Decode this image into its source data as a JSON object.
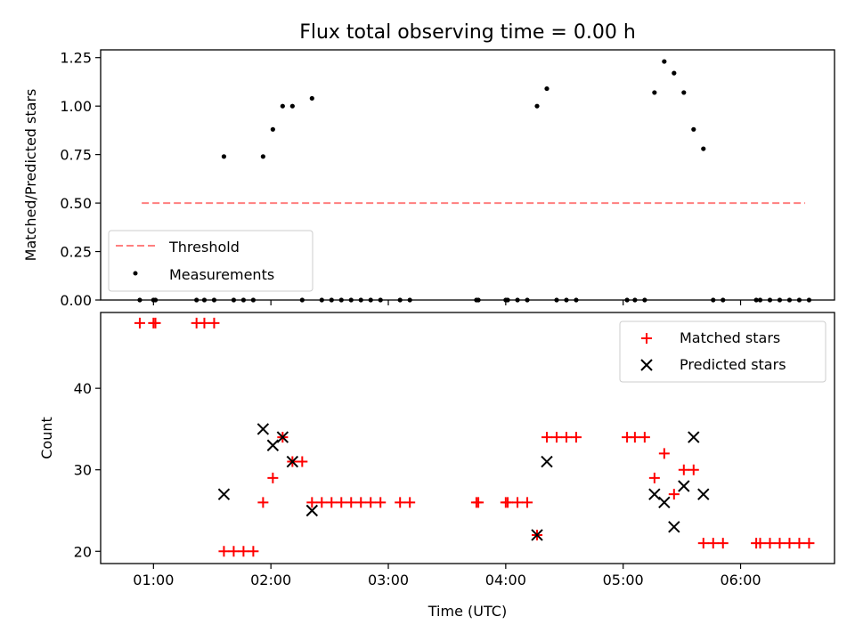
{
  "chart_data": [
    {
      "type": "scatter",
      "title": "Flux total observing time = 0.00 h",
      "xlabel": "",
      "ylabel": "Matched/Predicted stars",
      "xlim": [
        "00:33",
        "06:48"
      ],
      "ylim": [
        0,
        1.29
      ],
      "yticks": [
        "0.00",
        "0.25",
        "0.50",
        "0.75",
        "1.00",
        "1.25"
      ],
      "xticks": [
        "01:00",
        "02:00",
        "03:00",
        "04:00",
        "05:00",
        "06:00"
      ],
      "show_xtick_labels": false,
      "legend": {
        "position": "lower-left",
        "entries": [
          "Threshold",
          "Measurements"
        ]
      },
      "series": [
        {
          "name": "Threshold",
          "kind": "line",
          "style": "dashed",
          "color": "#ff7f7f",
          "x": [
            "00:54",
            "06:33"
          ],
          "y": [
            0.5,
            0.5
          ]
        },
        {
          "name": "Measurements",
          "kind": "points",
          "color": "#000000",
          "points": [
            [
              "00:53",
              0
            ],
            [
              "01:00",
              0
            ],
            [
              "01:01",
              0
            ],
            [
              "01:22",
              0
            ],
            [
              "01:26",
              0
            ],
            [
              "01:31",
              0
            ],
            [
              "01:36",
              0.74
            ],
            [
              "01:41",
              0
            ],
            [
              "01:46",
              0
            ],
            [
              "01:51",
              0
            ],
            [
              "01:56",
              0.74
            ],
            [
              "02:01",
              0.88
            ],
            [
              "02:06",
              1.0
            ],
            [
              "02:11",
              1.0
            ],
            [
              "02:16",
              0
            ],
            [
              "02:21",
              1.04
            ],
            [
              "02:26",
              0
            ],
            [
              "02:31",
              0
            ],
            [
              "02:36",
              0
            ],
            [
              "02:41",
              0
            ],
            [
              "02:46",
              0
            ],
            [
              "02:51",
              0
            ],
            [
              "02:56",
              0
            ],
            [
              "03:06",
              0
            ],
            [
              "03:11",
              0
            ],
            [
              "03:45",
              0
            ],
            [
              "03:46",
              0
            ],
            [
              "04:00",
              0
            ],
            [
              "04:01",
              0
            ],
            [
              "04:06",
              0
            ],
            [
              "04:11",
              0
            ],
            [
              "04:16",
              1.0
            ],
            [
              "04:21",
              1.09
            ],
            [
              "04:26",
              0
            ],
            [
              "04:31",
              0
            ],
            [
              "04:36",
              0
            ],
            [
              "05:02",
              0
            ],
            [
              "05:06",
              0
            ],
            [
              "05:11",
              0
            ],
            [
              "05:16",
              1.07
            ],
            [
              "05:21",
              1.23
            ],
            [
              "05:26",
              1.17
            ],
            [
              "05:31",
              1.07
            ],
            [
              "05:36",
              0.88
            ],
            [
              "05:41",
              0.78
            ],
            [
              "05:46",
              0
            ],
            [
              "05:51",
              0
            ],
            [
              "06:08",
              0
            ],
            [
              "06:10",
              0
            ],
            [
              "06:15",
              0
            ],
            [
              "06:20",
              0
            ],
            [
              "06:25",
              0
            ],
            [
              "06:30",
              0
            ],
            [
              "06:35",
              0
            ]
          ]
        }
      ]
    },
    {
      "type": "scatter",
      "title": "",
      "xlabel": "Time (UTC)",
      "ylabel": "Count",
      "xlim": [
        "00:33",
        "06:48"
      ],
      "ylim": [
        18.5,
        49.3
      ],
      "yticks": [
        "20",
        "30",
        "40"
      ],
      "xticks": [
        "01:00",
        "02:00",
        "03:00",
        "04:00",
        "05:00",
        "06:00"
      ],
      "show_xtick_labels": true,
      "legend": {
        "position": "top-right",
        "entries": [
          "Matched stars",
          "Predicted stars"
        ]
      },
      "series": [
        {
          "name": "Matched stars",
          "kind": "plus",
          "color": "#ff0000",
          "points": [
            [
              "00:53",
              48
            ],
            [
              "01:00",
              48
            ],
            [
              "01:01",
              48
            ],
            [
              "01:22",
              48
            ],
            [
              "01:26",
              48
            ],
            [
              "01:31",
              48
            ],
            [
              "01:36",
              20
            ],
            [
              "01:41",
              20
            ],
            [
              "01:46",
              20
            ],
            [
              "01:51",
              20
            ],
            [
              "01:56",
              26
            ],
            [
              "02:01",
              29
            ],
            [
              "02:06",
              34
            ],
            [
              "02:11",
              31
            ],
            [
              "02:16",
              31
            ],
            [
              "02:21",
              26
            ],
            [
              "02:26",
              26
            ],
            [
              "02:31",
              26
            ],
            [
              "02:36",
              26
            ],
            [
              "02:41",
              26
            ],
            [
              "02:46",
              26
            ],
            [
              "02:51",
              26
            ],
            [
              "02:56",
              26
            ],
            [
              "03:06",
              26
            ],
            [
              "03:11",
              26
            ],
            [
              "03:45",
              26
            ],
            [
              "03:46",
              26
            ],
            [
              "04:00",
              26
            ],
            [
              "04:01",
              26
            ],
            [
              "04:06",
              26
            ],
            [
              "04:11",
              26
            ],
            [
              "04:16",
              22
            ],
            [
              "04:21",
              34
            ],
            [
              "04:26",
              34
            ],
            [
              "04:31",
              34
            ],
            [
              "04:36",
              34
            ],
            [
              "05:02",
              34
            ],
            [
              "05:06",
              34
            ],
            [
              "05:11",
              34
            ],
            [
              "05:16",
              29
            ],
            [
              "05:21",
              32
            ],
            [
              "05:26",
              27
            ],
            [
              "05:31",
              30
            ],
            [
              "05:36",
              30
            ],
            [
              "05:41",
              21
            ],
            [
              "05:46",
              21
            ],
            [
              "05:51",
              21
            ],
            [
              "06:08",
              21
            ],
            [
              "06:10",
              21
            ],
            [
              "06:15",
              21
            ],
            [
              "06:20",
              21
            ],
            [
              "06:25",
              21
            ],
            [
              "06:30",
              21
            ],
            [
              "06:35",
              21
            ]
          ]
        },
        {
          "name": "Predicted stars",
          "kind": "x",
          "color": "#000000",
          "points": [
            [
              "01:36",
              27
            ],
            [
              "01:56",
              35
            ],
            [
              "02:01",
              33
            ],
            [
              "02:06",
              34
            ],
            [
              "02:11",
              31
            ],
            [
              "02:21",
              25
            ],
            [
              "04:16",
              22
            ],
            [
              "04:21",
              31
            ],
            [
              "05:16",
              27
            ],
            [
              "05:21",
              26
            ],
            [
              "05:26",
              23
            ],
            [
              "05:31",
              28
            ],
            [
              "05:36",
              34
            ],
            [
              "05:41",
              27
            ]
          ]
        }
      ]
    }
  ]
}
